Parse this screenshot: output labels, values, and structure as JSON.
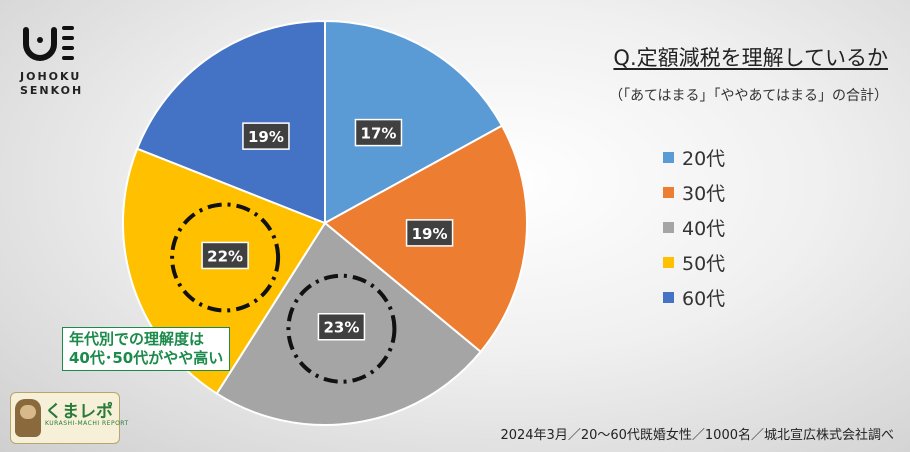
{
  "logo": {
    "line1": "JOHOKU",
    "line2": "SENKOH"
  },
  "title": "Q.定額減税を理解しているか",
  "subtitle": "（「あてはまる」「ややあてはまる」の合計）",
  "annotation": {
    "line1": "年代別での理解度は",
    "line2": "40代･50代がやや高い"
  },
  "footer": "2024年3月／20～60代既婚女性／1000名／城北宣広株式会社調べ",
  "brand": {
    "name": "くまレポ",
    "sub": "KURASHI-MACHI REPORT"
  },
  "chart_data": {
    "type": "pie",
    "title": "Q.定額減税を理解しているか",
    "categories": [
      "20代",
      "30代",
      "40代",
      "50代",
      "60代"
    ],
    "values": [
      17,
      19,
      23,
      22,
      19
    ],
    "labels": [
      "17%",
      "19%",
      "23%",
      "22%",
      "19%"
    ],
    "colors": [
      "#5b9bd5",
      "#ed7d31",
      "#a5a5a5",
      "#ffc000",
      "#4472c4"
    ],
    "highlighted": [
      "40代",
      "50代"
    ],
    "start_angle_deg": 0,
    "direction": "clockwise",
    "legend_position": "right"
  }
}
